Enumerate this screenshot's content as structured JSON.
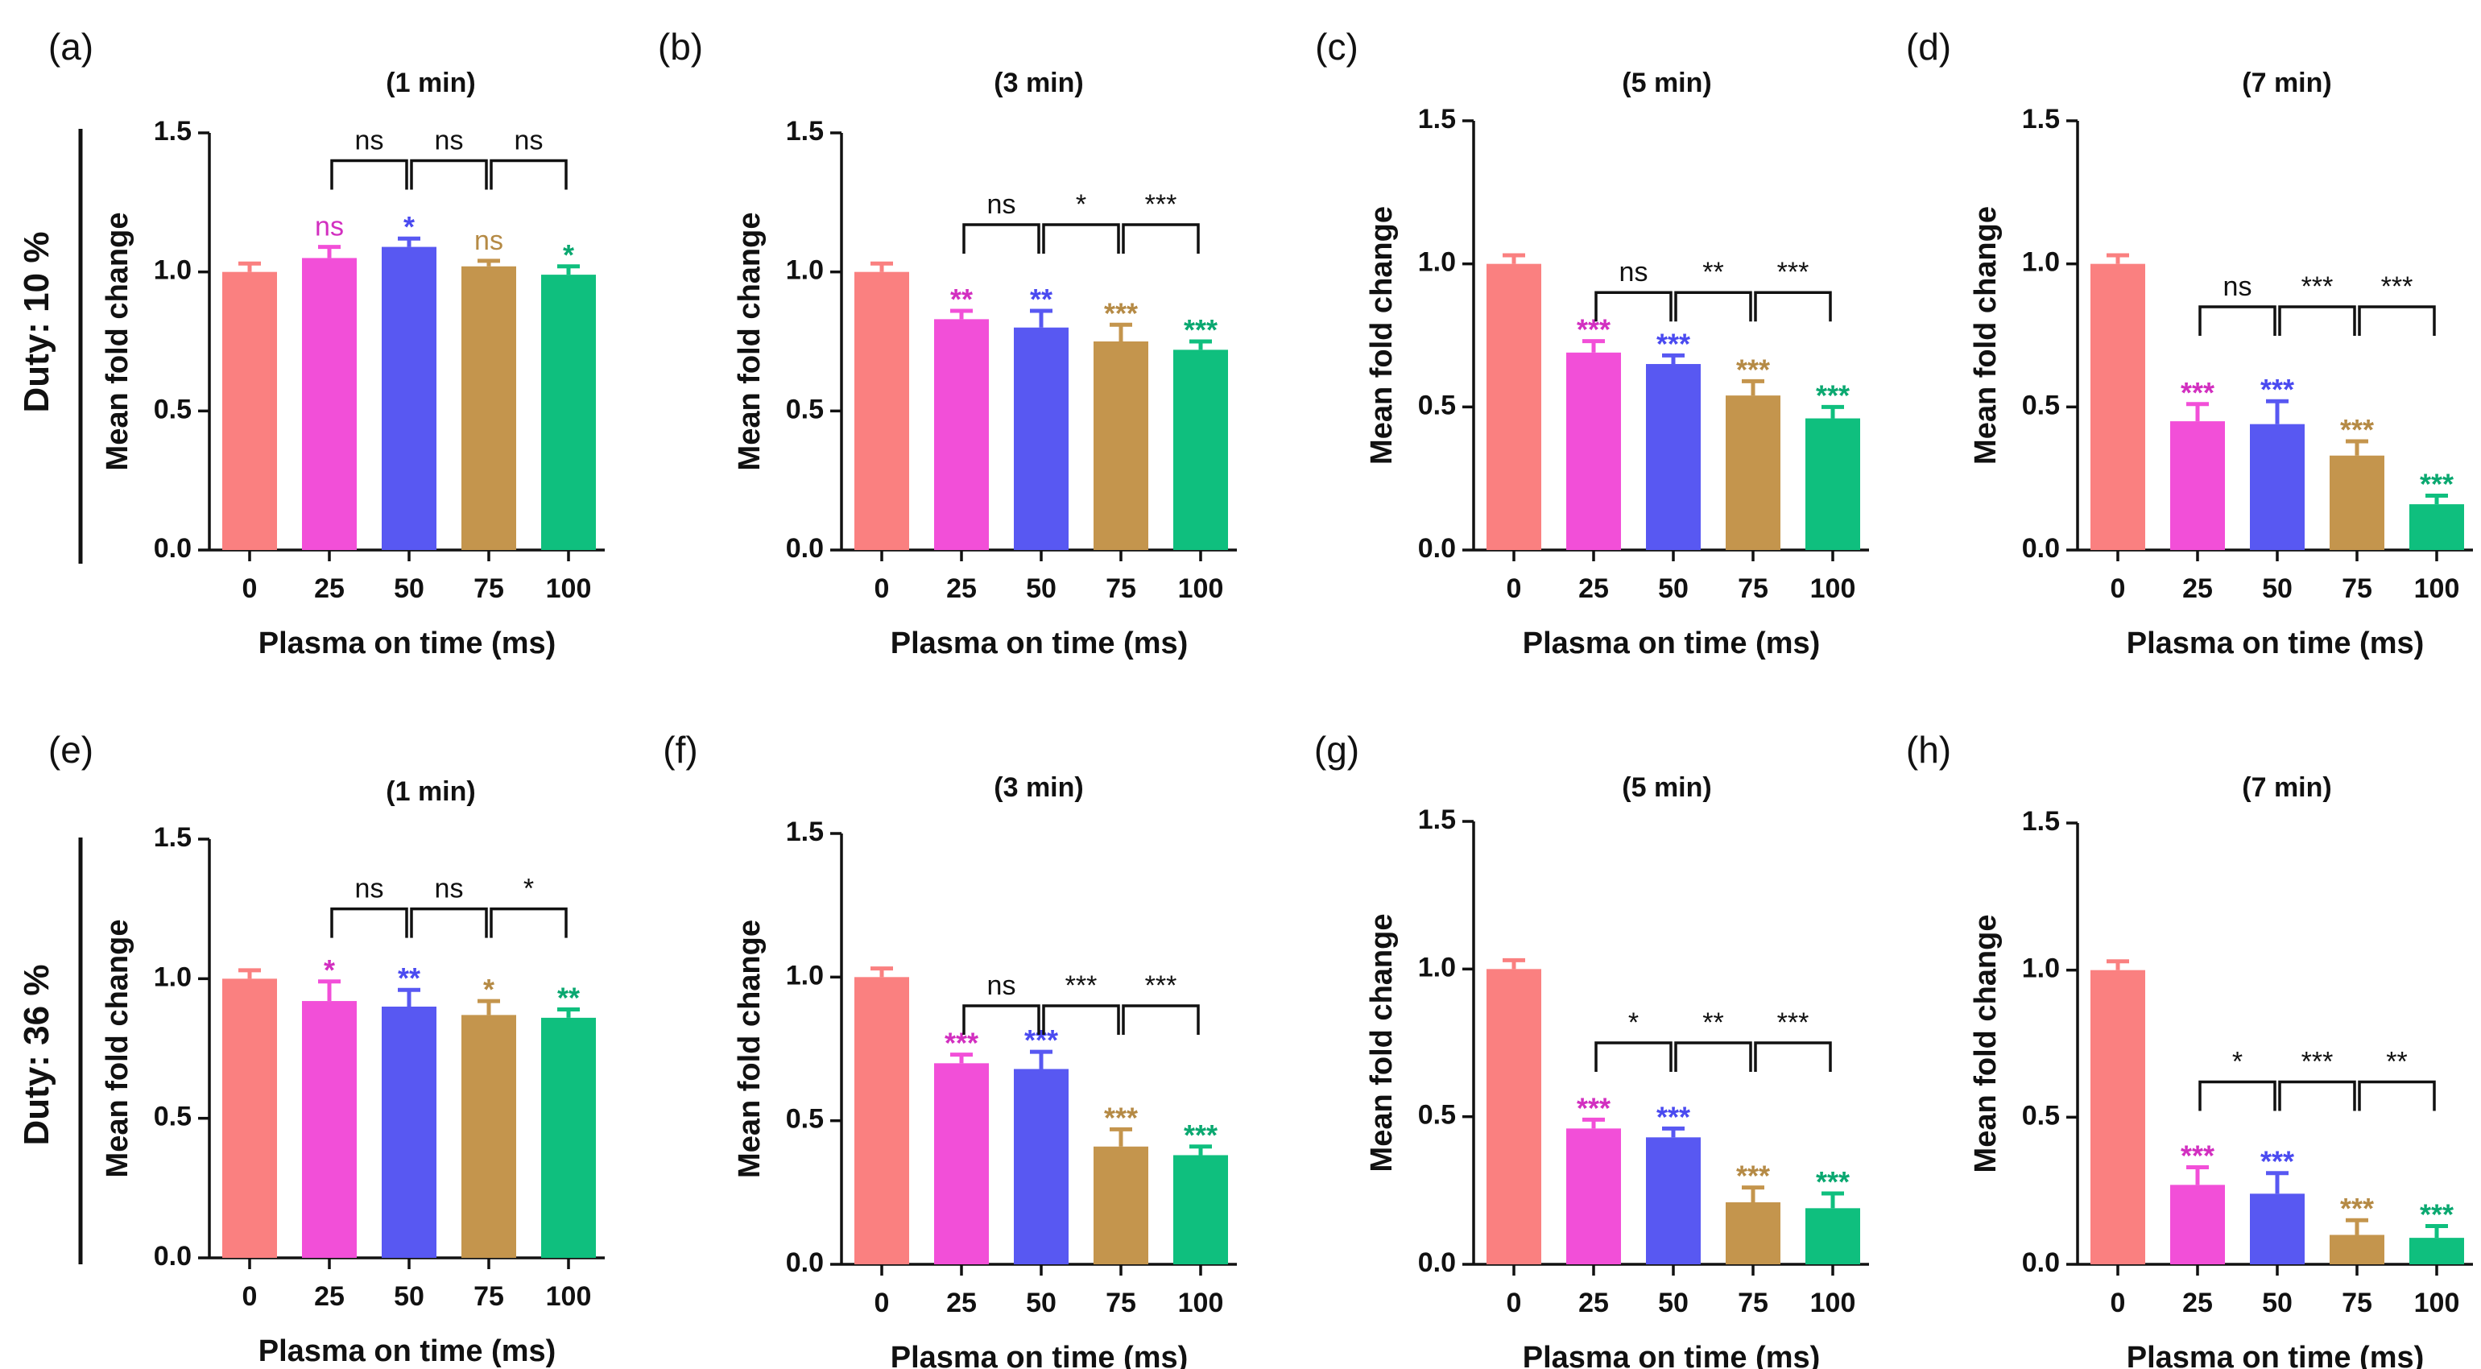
{
  "row_labels": [
    "Duty: 10 %",
    "Duty: 36 %"
  ],
  "colors": [
    "#fa8080",
    "#f24fd8",
    "#5858f2",
    "#c4954d",
    "#0fbf7e"
  ],
  "sig_text_colors": [
    "#fa8080",
    "#d22fc0",
    "#4a4af0",
    "#b58a45",
    "#0aa870"
  ],
  "chart_data": [
    {
      "type": "bar",
      "panel": "(a)",
      "title": "(1 min)",
      "xlabel": "Plasma on time (ms)",
      "ylabel": "Mean fold change",
      "categories": [
        "0",
        "25",
        "50",
        "75",
        "100"
      ],
      "values": [
        1.0,
        1.05,
        1.09,
        1.02,
        0.99
      ],
      "errors": [
        0.03,
        0.04,
        0.03,
        0.02,
        0.03
      ],
      "sig_vs_control": [
        "",
        "ns",
        "*",
        "ns",
        "*"
      ],
      "comparisons": [
        {
          "from": 1,
          "to": 2,
          "label": "ns",
          "level": 1.4
        },
        {
          "from": 2,
          "to": 3,
          "label": "ns",
          "level": 1.4
        },
        {
          "from": 3,
          "to": 4,
          "label": "ns",
          "level": 1.4
        }
      ],
      "ylim": [
        0,
        1.5
      ],
      "yticks": [
        "0.0",
        "0.5",
        "1.0",
        "1.5"
      ]
    },
    {
      "type": "bar",
      "panel": "(b)",
      "title": "(3 min)",
      "xlabel": "Plasma on time (ms)",
      "ylabel": "Mean fold change",
      "categories": [
        "0",
        "25",
        "50",
        "75",
        "100"
      ],
      "values": [
        1.0,
        0.83,
        0.8,
        0.75,
        0.72
      ],
      "errors": [
        0.03,
        0.03,
        0.06,
        0.06,
        0.03
      ],
      "sig_vs_control": [
        "",
        "**",
        "**",
        "***",
        "***"
      ],
      "comparisons": [
        {
          "from": 1,
          "to": 2,
          "label": "ns",
          "level": 1.17
        },
        {
          "from": 2,
          "to": 3,
          "label": "*",
          "level": 1.17
        },
        {
          "from": 3,
          "to": 4,
          "label": "***",
          "level": 1.17
        }
      ],
      "ylim": [
        0,
        1.5
      ],
      "yticks": [
        "0.0",
        "0.5",
        "1.0",
        "1.5"
      ]
    },
    {
      "type": "bar",
      "panel": "(c)",
      "title": "(5 min)",
      "xlabel": "Plasma on time (ms)",
      "ylabel": "Mean fold change",
      "categories": [
        "0",
        "25",
        "50",
        "75",
        "100"
      ],
      "values": [
        1.0,
        0.69,
        0.65,
        0.54,
        0.46
      ],
      "errors": [
        0.03,
        0.04,
        0.03,
        0.05,
        0.04
      ],
      "sig_vs_control": [
        "",
        "***",
        "***",
        "***",
        "***"
      ],
      "comparisons": [
        {
          "from": 1,
          "to": 2,
          "label": "ns",
          "level": 0.9
        },
        {
          "from": 2,
          "to": 3,
          "label": "**",
          "level": 0.9
        },
        {
          "from": 3,
          "to": 4,
          "label": "***",
          "level": 0.9
        }
      ],
      "ylim": [
        0,
        1.5
      ],
      "yticks": [
        "0.0",
        "0.5",
        "1.0",
        "1.5"
      ]
    },
    {
      "type": "bar",
      "panel": "(d)",
      "title": "(7 min)",
      "xlabel": "Plasma on time (ms)",
      "ylabel": "Mean fold change",
      "categories": [
        "0",
        "25",
        "50",
        "75",
        "100"
      ],
      "values": [
        1.0,
        0.45,
        0.44,
        0.33,
        0.16
      ],
      "errors": [
        0.03,
        0.06,
        0.08,
        0.05,
        0.03
      ],
      "sig_vs_control": [
        "",
        "***",
        "***",
        "***",
        "***"
      ],
      "comparisons": [
        {
          "from": 1,
          "to": 2,
          "label": "ns",
          "level": 0.85
        },
        {
          "from": 2,
          "to": 3,
          "label": "***",
          "level": 0.85
        },
        {
          "from": 3,
          "to": 4,
          "label": "***",
          "level": 0.85
        }
      ],
      "ylim": [
        0,
        1.5
      ],
      "yticks": [
        "0.0",
        "0.5",
        "1.0",
        "1.5"
      ]
    },
    {
      "type": "bar",
      "panel": "(e)",
      "title": "(1 min)",
      "xlabel": "Plasma on time (ms)",
      "ylabel": "Mean fold change",
      "categories": [
        "0",
        "25",
        "50",
        "75",
        "100"
      ],
      "values": [
        1.0,
        0.92,
        0.9,
        0.87,
        0.86
      ],
      "errors": [
        0.03,
        0.07,
        0.06,
        0.05,
        0.03
      ],
      "sig_vs_control": [
        "",
        "*",
        "**",
        "*",
        "**"
      ],
      "comparisons": [
        {
          "from": 1,
          "to": 2,
          "label": "ns",
          "level": 1.25
        },
        {
          "from": 2,
          "to": 3,
          "label": "ns",
          "level": 1.25
        },
        {
          "from": 3,
          "to": 4,
          "label": "*",
          "level": 1.25
        }
      ],
      "ylim": [
        0,
        1.5
      ],
      "yticks": [
        "0.0",
        "0.5",
        "1.0",
        "1.5"
      ]
    },
    {
      "type": "bar",
      "panel": "(f)",
      "title": "(3 min)",
      "xlabel": "Plasma on time (ms)",
      "ylabel": "Mean fold change",
      "categories": [
        "0",
        "25",
        "50",
        "75",
        "100"
      ],
      "values": [
        1.0,
        0.7,
        0.68,
        0.41,
        0.38
      ],
      "errors": [
        0.03,
        0.03,
        0.06,
        0.06,
        0.03
      ],
      "sig_vs_control": [
        "",
        "***",
        "***",
        "***",
        "***"
      ],
      "comparisons": [
        {
          "from": 1,
          "to": 2,
          "label": "ns",
          "level": 0.9
        },
        {
          "from": 2,
          "to": 3,
          "label": "***",
          "level": 0.9
        },
        {
          "from": 3,
          "to": 4,
          "label": "***",
          "level": 0.9
        }
      ],
      "ylim": [
        0,
        1.5
      ],
      "yticks": [
        "0.0",
        "0.5",
        "1.0",
        "1.5"
      ]
    },
    {
      "type": "bar",
      "panel": "(g)",
      "title": "(5 min)",
      "xlabel": "Plasma on time (ms)",
      "ylabel": "Mean fold change",
      "categories": [
        "0",
        "25",
        "50",
        "75",
        "100"
      ],
      "values": [
        1.0,
        0.46,
        0.43,
        0.21,
        0.19
      ],
      "errors": [
        0.03,
        0.03,
        0.03,
        0.05,
        0.05
      ],
      "sig_vs_control": [
        "",
        "***",
        "***",
        "***",
        "***"
      ],
      "comparisons": [
        {
          "from": 1,
          "to": 2,
          "label": "*",
          "level": 0.75
        },
        {
          "from": 2,
          "to": 3,
          "label": "**",
          "level": 0.75
        },
        {
          "from": 3,
          "to": 4,
          "label": "***",
          "level": 0.75
        }
      ],
      "ylim": [
        0,
        1.5
      ],
      "yticks": [
        "0.0",
        "0.5",
        "1.0",
        "1.5"
      ]
    },
    {
      "type": "bar",
      "panel": "(h)",
      "title": "(7 min)",
      "xlabel": "Plasma on time (ms)",
      "ylabel": "Mean fold change",
      "categories": [
        "0",
        "25",
        "50",
        "75",
        "100"
      ],
      "values": [
        1.0,
        0.27,
        0.24,
        0.1,
        0.09
      ],
      "errors": [
        0.03,
        0.06,
        0.07,
        0.05,
        0.04
      ],
      "sig_vs_control": [
        "",
        "***",
        "***",
        "***",
        "***"
      ],
      "comparisons": [
        {
          "from": 1,
          "to": 2,
          "label": "*",
          "level": 0.62
        },
        {
          "from": 2,
          "to": 3,
          "label": "***",
          "level": 0.62
        },
        {
          "from": 3,
          "to": 4,
          "label": "**",
          "level": 0.62
        }
      ],
      "ylim": [
        0,
        1.5
      ],
      "yticks": [
        "0.0",
        "0.5",
        "1.0",
        "1.5"
      ]
    }
  ]
}
